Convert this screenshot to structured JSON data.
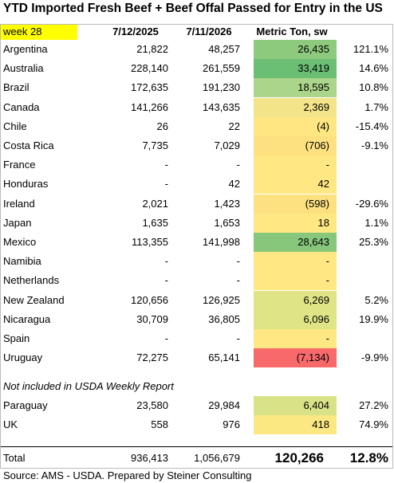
{
  "title": "YTD Imported Fresh Beef + Beef Offal Passed for Entry in the US",
  "header": {
    "week": "week 28",
    "columns": [
      "7/12/2025",
      "7/11/2026",
      "Metric Ton, sw"
    ]
  },
  "rows": [
    {
      "country": "Argentina",
      "y2025": "21,822",
      "y2026": "48,257",
      "diff": "26,435",
      "pct": "121.1%",
      "color": "#8dca7e"
    },
    {
      "country": "Australia",
      "y2025": "228,140",
      "y2026": "261,559",
      "diff": "33,419",
      "pct": "14.6%",
      "color": "#6bbf75"
    },
    {
      "country": "Brazil",
      "y2025": "172,635",
      "y2026": "191,230",
      "diff": "18,595",
      "pct": "10.8%",
      "color": "#abd58b"
    },
    {
      "country": "Canada",
      "y2025": "141,266",
      "y2026": "143,635",
      "diff": "2,369",
      "pct": "1.7%",
      "color": "#f3e48a"
    },
    {
      "country": "Chile",
      "y2025": "26",
      "y2026": "22",
      "diff": "(4)",
      "pct": "-15.4%",
      "color": "#ffe683"
    },
    {
      "country": "Costa Rica",
      "y2025": "7,735",
      "y2026": "7,029",
      "diff": "(706)",
      "pct": "-9.1%",
      "color": "#fde07f"
    },
    {
      "country": "France",
      "y2025": "-",
      "y2026": "-",
      "diff": "-",
      "color": "#ffe784"
    },
    {
      "country": "Honduras",
      "y2025": "-",
      "y2026": "42",
      "diff": "42",
      "color": "#ffe784"
    },
    {
      "country": "Ireland",
      "y2025": "2,021",
      "y2026": "1,423",
      "diff": "(598)",
      "pct": "-29.6%",
      "color": "#fde080"
    },
    {
      "country": "Japan",
      "y2025": "1,635",
      "y2026": "1,653",
      "diff": "18",
      "pct": "1.1%",
      "color": "#ffe784"
    },
    {
      "country": "Mexico",
      "y2025": "113,355",
      "y2026": "141,998",
      "diff": "28,643",
      "pct": "25.3%",
      "color": "#86c77b"
    },
    {
      "country": "Namibia",
      "y2025": "-",
      "y2026": "-",
      "diff": "-",
      "color": "#ffe784"
    },
    {
      "country": "Netherlands",
      "y2025": "-",
      "y2026": "-",
      "diff": "-",
      "color": "#ffe784"
    },
    {
      "country": "New Zealand",
      "y2025": "120,656",
      "y2026": "126,925",
      "diff": "6,269",
      "pct": "5.2%",
      "color": "#dfe487"
    },
    {
      "country": "Nicaragua",
      "y2025": "30,709",
      "y2026": "36,805",
      "diff": "6,096",
      "pct": "19.9%",
      "color": "#dfe487"
    },
    {
      "country": "Spain",
      "y2025": "-",
      "y2026": "-",
      "diff": "-",
      "color": "#ffe784"
    },
    {
      "country": "Uruguay",
      "y2025": "72,275",
      "y2026": "65,141",
      "diff": "(7,134)",
      "pct": "-9.9%",
      "color": "#f8696b"
    }
  ],
  "note": "Not included in USDA Weekly Report",
  "extra_rows": [
    {
      "country": "Paraguay",
      "y2025": "23,580",
      "y2026": "29,984",
      "diff": "6,404",
      "pct": "27.2%",
      "color": "#d9e287"
    },
    {
      "country": "UK",
      "y2025": "558",
      "y2026": "976",
      "diff": "418",
      "pct": "74.9%",
      "color": "#fce883"
    }
  ],
  "total": {
    "label": "Total",
    "y2025": "936,413",
    "y2026": "1,056,679",
    "diff": "120,266",
    "pct": "12.8%"
  },
  "source": "Source: AMS - USDA.  Prepared by Steiner Consulting"
}
